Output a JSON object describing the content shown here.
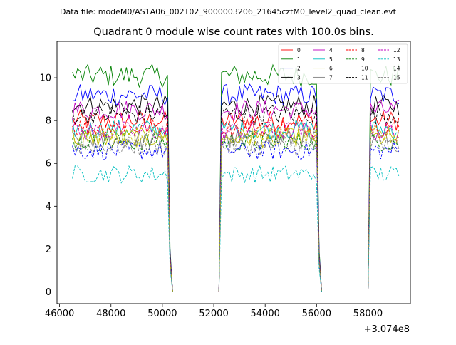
{
  "suptitle": "Data file: modeM0/AS1A06_002T02_9000003206_21645cztM0_level2_quad_clean.evt",
  "chart_data": {
    "type": "line",
    "title": "Quadrant 0 module wise count rates with 100.0s bins.",
    "xlabel": "",
    "ylabel": "",
    "x_offset_label": "+3.074e8",
    "xlim": [
      45900,
      59650
    ],
    "ylim": [
      -0.55,
      11.7
    ],
    "x_ticks": [
      46000,
      48000,
      50000,
      52000,
      54000,
      56000,
      58000
    ],
    "y_ticks": [
      0,
      2,
      4,
      6,
      8,
      10
    ],
    "x_tick_labels": [
      "46000",
      "48000",
      "50000",
      "52000",
      "54000",
      "56000",
      "58000"
    ],
    "y_tick_labels": [
      "0",
      "2",
      "4",
      "6",
      "8",
      "10"
    ],
    "grid": false,
    "legend_position": "top-right",
    "legend_columns": 4,
    "bin_width": 100,
    "segments": [
      {
        "start": 46500,
        "active_end": 50200,
        "zero_start": 50400,
        "zero_end": 52200
      },
      {
        "start": 52300,
        "active_end": 56000,
        "zero_start": 56200,
        "zero_end": 58000
      },
      {
        "start": 58100,
        "active_end": 59200,
        "zero_start": null,
        "zero_end": null
      }
    ],
    "series": [
      {
        "name": "0",
        "color": "#ff0000",
        "dash": "solid",
        "level": 8.0
      },
      {
        "name": "1",
        "color": "#008000",
        "dash": "solid",
        "level": 10.1
      },
      {
        "name": "2",
        "color": "#0000ff",
        "dash": "solid",
        "level": 9.2
      },
      {
        "name": "3",
        "color": "#000000",
        "dash": "solid",
        "level": 8.7
      },
      {
        "name": "4",
        "color": "#c000c0",
        "dash": "solid",
        "level": 8.5
      },
      {
        "name": "5",
        "color": "#00bfbf",
        "dash": "solid",
        "level": 7.6
      },
      {
        "name": "6",
        "color": "#bfbf00",
        "dash": "solid",
        "level": 7.2
      },
      {
        "name": "7",
        "color": "#808080",
        "dash": "solid",
        "level": 7.1
      },
      {
        "name": "8",
        "color": "#ff0000",
        "dash": "dashed",
        "level": 7.7
      },
      {
        "name": "9",
        "color": "#008000",
        "dash": "dashed",
        "level": 7.0
      },
      {
        "name": "10",
        "color": "#0000ff",
        "dash": "dashed",
        "level": 6.6
      },
      {
        "name": "11",
        "color": "#000000",
        "dash": "dashed",
        "level": 8.3
      },
      {
        "name": "12",
        "color": "#c000c0",
        "dash": "dashed",
        "level": 7.5
      },
      {
        "name": "13",
        "color": "#00bfbf",
        "dash": "dashed",
        "level": 5.5
      },
      {
        "name": "14",
        "color": "#bfbf00",
        "dash": "dashed",
        "level": 7.3
      },
      {
        "name": "15",
        "color": "#808080",
        "dash": "dashed",
        "level": 6.8
      }
    ]
  }
}
